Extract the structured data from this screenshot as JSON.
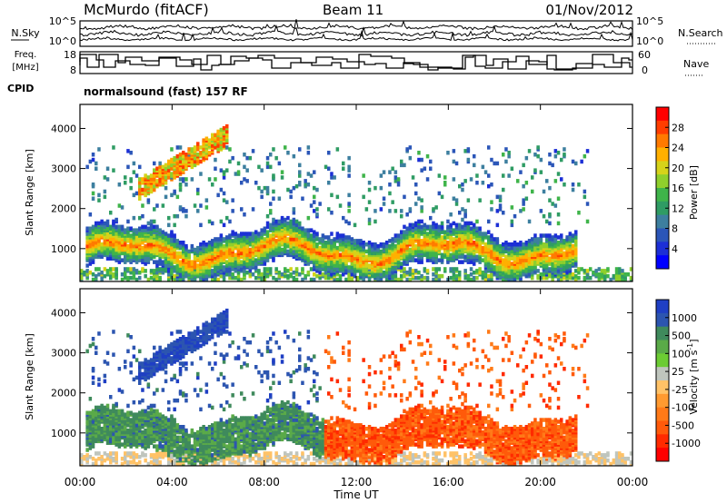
{
  "header": {
    "station": "McMurdo (fitACF)",
    "beam": "Beam 11",
    "date": "01/Nov/2012",
    "cpid_label": "CPID",
    "cpid_value": "normalsound (fast) 157 RF"
  },
  "colors": {
    "background": "#ffffff",
    "axis": "#000000",
    "noise_trace": "#000000"
  },
  "chart_data": [
    {
      "type": "line",
      "panel": "noise",
      "left_label": "N.Sky",
      "right_label": "N.Search",
      "left_ticks": [
        "10^5",
        "10^0"
      ],
      "right_ticks": [
        "10^5",
        "10^0"
      ]
    },
    {
      "type": "line",
      "panel": "frequency",
      "left_label_line1": "Freq.",
      "left_label_line2": "[MHz]",
      "right_label": "Nave",
      "left_ticks": [
        "18",
        "8"
      ],
      "right_ticks": [
        "60",
        "0"
      ],
      "ylim_left": [
        8,
        18
      ],
      "ylim_right": [
        0,
        60
      ]
    },
    {
      "type": "heatmap",
      "panel": "power",
      "ylabel": "Slant Range [km]",
      "yticks": [
        "4000",
        "3000",
        "2000",
        "1000"
      ],
      "ylim": [
        180,
        4600
      ],
      "colorbar_label": "Power [dB]",
      "colorbar_ticks": [
        "28",
        "24",
        "20",
        "16",
        "12",
        "8",
        "4"
      ],
      "colorbar_colors": [
        "#ff0000",
        "#ff3d00",
        "#ff7a00",
        "#ffb000",
        "#d6d31a",
        "#8fcf2c",
        "#3fb44a",
        "#2f9c64",
        "#3d7f9f",
        "#2b56b8",
        "#1c2fd6",
        "#0000ff"
      ]
    },
    {
      "type": "heatmap",
      "panel": "velocity",
      "ylabel": "Slant Range [km]",
      "yticks": [
        "4000",
        "3000",
        "2000",
        "1000"
      ],
      "ylim": [
        180,
        4600
      ],
      "colorbar_label": "Velocity [m s",
      "colorbar_label_sup": "-1",
      "colorbar_label_end": "]",
      "colorbar_ticks": [
        "1000",
        "500",
        "100",
        "25",
        "-25",
        "-100",
        "-500",
        "-1000"
      ],
      "colorbar_colors": [
        "#1f3fc4",
        "#2c55b0",
        "#3f8a5c",
        "#5aaa48",
        "#6ccc33",
        "#bfc5bd",
        "#ffc267",
        "#ff9a30",
        "#ff7a18",
        "#ff5a0a",
        "#ff2a00",
        "#ff0000"
      ]
    }
  ],
  "x_axis": {
    "label": "Time UT",
    "ticks": [
      "00:00",
      "04:00",
      "08:00",
      "12:00",
      "16:00",
      "20:00",
      "00:00"
    ]
  }
}
